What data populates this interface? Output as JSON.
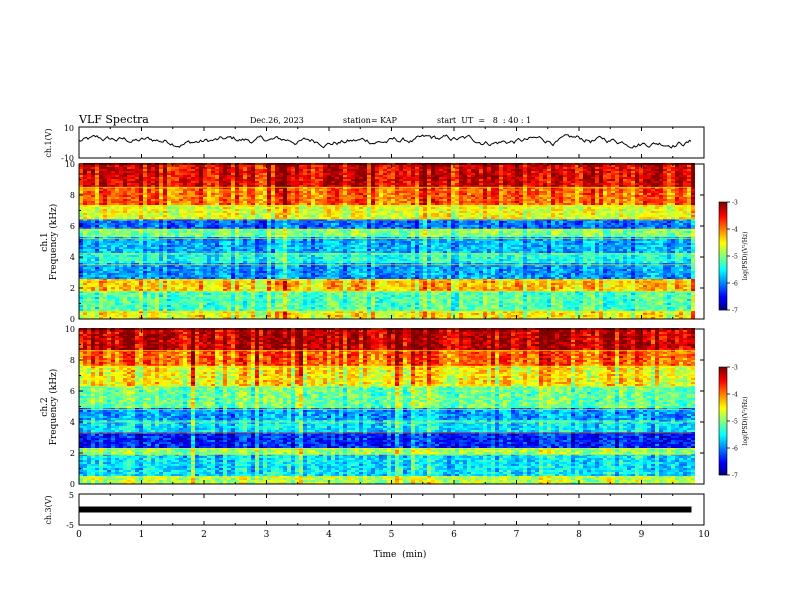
{
  "header": {
    "title": "VLF Spectra",
    "date": "Dec.26, 2023",
    "station": "station= KAP",
    "start": "start  UT  =   8  : 40 : 1"
  },
  "chart_data": [
    {
      "type": "line",
      "panel": "ch1_waveform",
      "ylabel": "ch.1(V)",
      "ylim": [
        -10,
        10
      ],
      "ytick_labels": [
        "10",
        "-10"
      ],
      "xlim": [
        0,
        10
      ],
      "series": [
        {
          "values_description_free": true,
          "approx_range": [
            -3,
            5
          ]
        }
      ]
    },
    {
      "type": "heatmap",
      "panel": "ch1_spectrogram",
      "ylabel": "ch.1\nFrequency  (kHz)",
      "ylabel_top": "ch.1",
      "ylabel_bottom": "Frequency  (kHz)",
      "ylim": [
        0,
        10
      ],
      "ytick_labels": [
        "0",
        "2",
        "4",
        "6",
        "8",
        "10"
      ],
      "xlim": [
        0,
        10
      ],
      "bands_khz": [
        {
          "from": 0.0,
          "to": 0.5,
          "level": -4.5
        },
        {
          "from": 0.5,
          "to": 1.8,
          "level": -5.2
        },
        {
          "from": 1.8,
          "to": 2.5,
          "level": -4.3
        },
        {
          "from": 2.5,
          "to": 3.5,
          "level": -5.9
        },
        {
          "from": 3.5,
          "to": 4.2,
          "level": -5.4
        },
        {
          "from": 4.2,
          "to": 5.2,
          "level": -5.8
        },
        {
          "from": 5.2,
          "to": 5.8,
          "level": -5.0
        },
        {
          "from": 5.8,
          "to": 6.4,
          "level": -6.1
        },
        {
          "from": 6.4,
          "to": 7.3,
          "level": -4.6
        },
        {
          "from": 7.3,
          "to": 8.5,
          "level": -3.9
        },
        {
          "from": 8.5,
          "to": 10.0,
          "level": -3.4
        }
      ],
      "colorbar": {
        "label": "log(PSD)(V²/Hz)",
        "ticks": [
          "-3",
          "-4",
          "-5",
          "-6",
          "-7"
        ],
        "range": [
          -7,
          -3
        ]
      }
    },
    {
      "type": "heatmap",
      "panel": "ch2_spectrogram",
      "ylabel_top": "ch.2",
      "ylabel_bottom": "Frequency  (kHz)",
      "ylim": [
        0,
        10
      ],
      "ytick_labels": [
        "0",
        "2",
        "4",
        "6",
        "8",
        "10"
      ],
      "xlim": [
        0,
        10
      ],
      "bands_khz": [
        {
          "from": 0.0,
          "to": 0.4,
          "level": -4.8
        },
        {
          "from": 0.4,
          "to": 1.9,
          "level": -5.6
        },
        {
          "from": 1.9,
          "to": 2.3,
          "level": -4.9
        },
        {
          "from": 2.3,
          "to": 3.3,
          "level": -6.4
        },
        {
          "from": 3.3,
          "to": 4.0,
          "level": -5.6
        },
        {
          "from": 4.0,
          "to": 4.8,
          "level": -5.9
        },
        {
          "from": 4.8,
          "to": 6.3,
          "level": -5.1
        },
        {
          "from": 6.3,
          "to": 7.6,
          "level": -4.5
        },
        {
          "from": 7.6,
          "to": 8.6,
          "level": -3.9
        },
        {
          "from": 8.6,
          "to": 10.0,
          "level": -3.3
        }
      ],
      "colorbar": {
        "label": "log(PSD)(V²/Hz)",
        "ticks": [
          "-3",
          "-4",
          "-5",
          "-6",
          "-7"
        ],
        "range": [
          -7,
          -3
        ]
      }
    },
    {
      "type": "line",
      "panel": "ch3_signal",
      "ylabel": "ch.3(V)",
      "ylim": [
        -5,
        5
      ],
      "ytick_labels": [
        "5",
        "-5"
      ],
      "xlim": [
        0,
        10
      ],
      "level_v": 0.0,
      "xlabel": "Time  (min)",
      "xtick_labels": [
        "0",
        "1",
        "2",
        "3",
        "4",
        "5",
        "6",
        "7",
        "8",
        "9",
        "10"
      ],
      "data_end_min": 9.8
    }
  ]
}
